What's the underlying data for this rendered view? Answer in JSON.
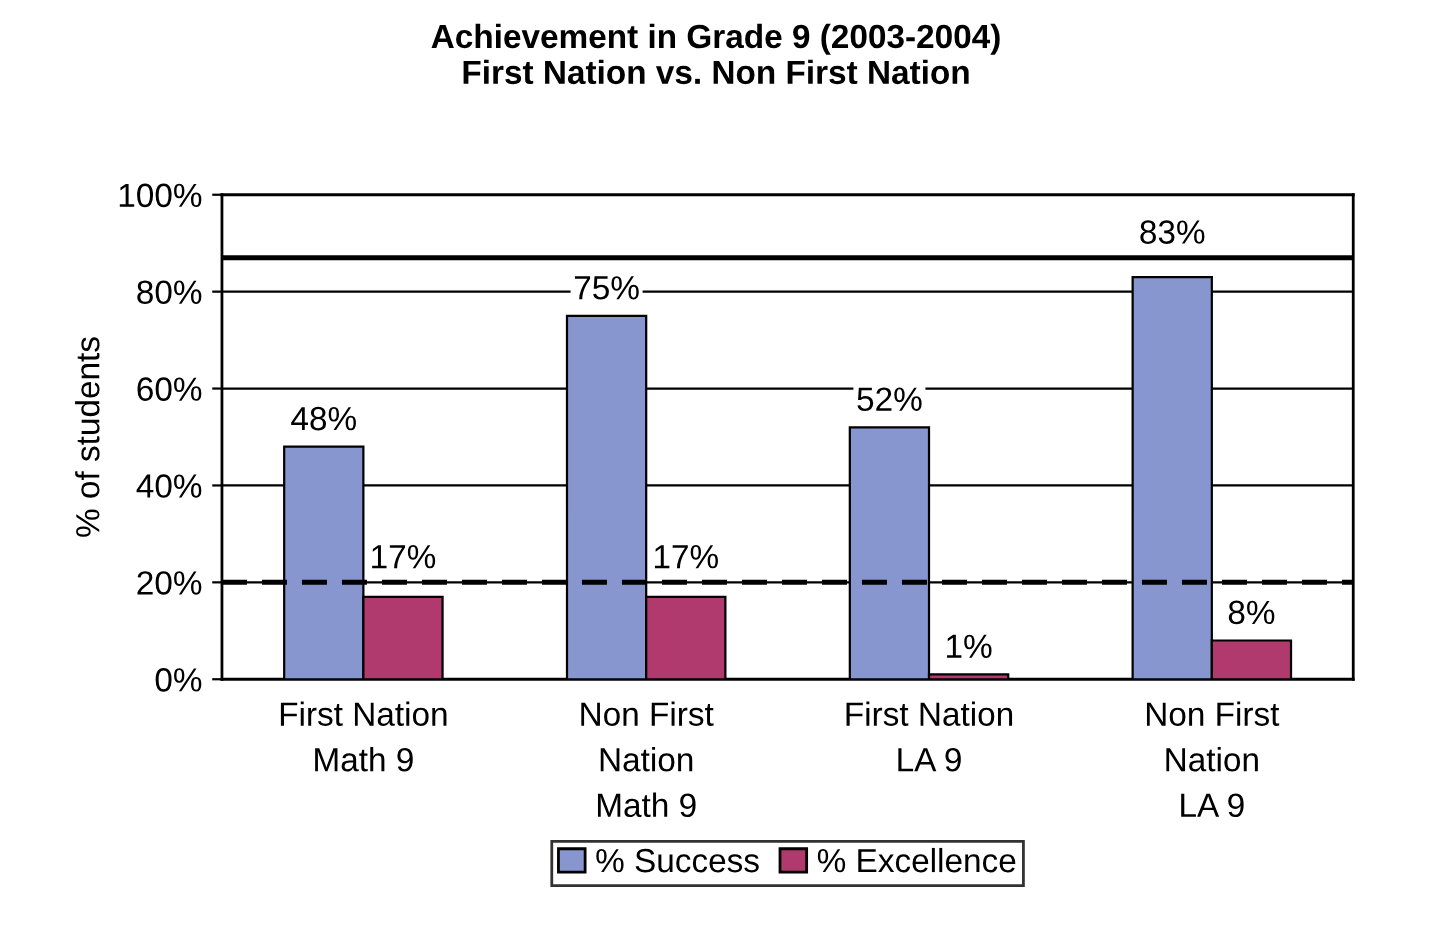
{
  "chart_data": {
    "type": "bar",
    "title": "Achievement in Grade 9 (2003-2004)\nFirst Nation vs. Non First Nation",
    "ylabel": "% of students",
    "categories": [
      "First Nation\nMath 9",
      "Non First\nNation\nMath 9",
      "First Nation\nLA 9",
      "Non First\nNation\nLA 9"
    ],
    "series": [
      {
        "name": "% Success",
        "color": "#8896d0",
        "values": [
          48,
          75,
          52,
          83
        ],
        "value_labels": [
          "48%",
          "75%",
          "52%",
          "83%"
        ]
      },
      {
        "name": "% Excellence",
        "color": "#b03a6e",
        "values": [
          17,
          17,
          1,
          8
        ],
        "value_labels": [
          "17%",
          "17%",
          "1%",
          "8%"
        ]
      }
    ],
    "ylim": [
      0,
      100
    ],
    "yticks": [
      {
        "value": 0,
        "label": "0%"
      },
      {
        "value": 20,
        "label": "20%"
      },
      {
        "value": 40,
        "label": "40%"
      },
      {
        "value": 60,
        "label": "60%"
      },
      {
        "value": 80,
        "label": "80%"
      },
      {
        "value": 100,
        "label": "100%"
      }
    ],
    "ref_lines": [
      {
        "axis": "y",
        "value": 87,
        "color": "#000000",
        "line_style": "solid"
      },
      {
        "axis": "y",
        "value": 20,
        "color": "#000000",
        "line_style": "dashed"
      }
    ],
    "grid": "y",
    "legend": "bottom"
  }
}
